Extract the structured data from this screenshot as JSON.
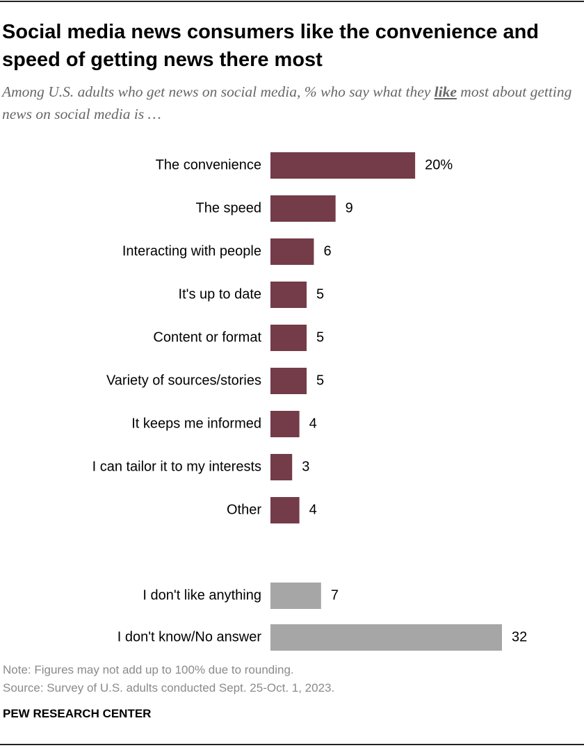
{
  "chart_data": {
    "type": "hbar",
    "title": "Social media news consumers like the convenience and speed of getting news there most",
    "subtitle": [
      "Among U.S. adults who get news on social media, % who say what they ",
      "like",
      " most about getting news on social media is …"
    ],
    "categories": [
      "The convenience",
      "The speed",
      "Interacting with people",
      "It's up to date",
      "Content or format",
      "Variety of sources/stories",
      "It keeps me informed",
      "I can tailor it to my interests",
      "Other",
      "I don't like anything",
      "I don't know/No answer"
    ],
    "values": [
      20,
      9,
      6,
      5,
      5,
      5,
      4,
      3,
      4,
      7,
      32
    ],
    "value_labels": [
      "20%",
      "9",
      "6",
      "5",
      "5",
      "5",
      "4",
      "3",
      "4",
      "7",
      "32"
    ],
    "colors": [
      "#733c48",
      "#733c48",
      "#733c48",
      "#733c48",
      "#733c48",
      "#733c48",
      "#733c48",
      "#733c48",
      "#733c48",
      "#a6a6a6",
      "#a6a6a6"
    ],
    "xlim": [
      0,
      32
    ],
    "notes": [
      "Note: Figures may not add up to 100% due to rounding.",
      "Source: Survey of U.S. adults conducted Sept. 25-Oct. 1, 2023."
    ],
    "source_org": "PEW RESEARCH CENTER"
  }
}
